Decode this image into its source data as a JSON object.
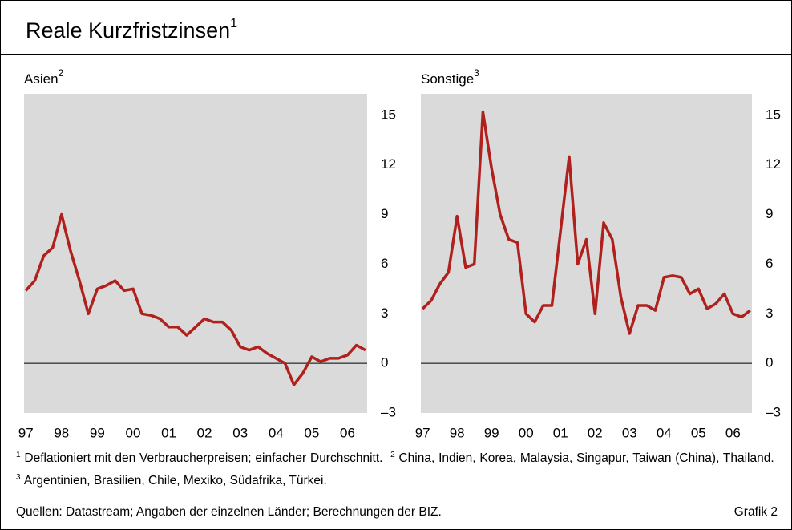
{
  "title": "Reale Kurzfristzinsen",
  "title_note": "1",
  "chart_data": [
    {
      "type": "line",
      "title": "Asien",
      "title_note": "2",
      "x": [
        1997,
        1997.25,
        1997.5,
        1997.75,
        1998,
        1998.25,
        1998.5,
        1998.75,
        1999,
        1999.25,
        1999.5,
        1999.75,
        2000,
        2000.25,
        2000.5,
        2000.75,
        2001,
        2001.25,
        2001.5,
        2001.75,
        2002,
        2002.25,
        2002.5,
        2002.75,
        2003,
        2003.25,
        2003.5,
        2003.75,
        2004,
        2004.25,
        2004.5,
        2004.75,
        2005,
        2005.25,
        2005.5,
        2005.75,
        2006,
        2006.25,
        2006.5
      ],
      "series": [
        {
          "color": "#b0201c",
          "values": [
            4.4,
            5.0,
            6.5,
            7.0,
            9.0,
            6.8,
            5.0,
            3.0,
            4.5,
            4.7,
            5.0,
            4.4,
            4.5,
            3.0,
            2.9,
            2.7,
            2.2,
            2.2,
            1.7,
            2.2,
            2.7,
            2.5,
            2.5,
            2.0,
            1.0,
            0.8,
            1.0,
            0.6,
            0.3,
            0.0,
            -1.3,
            -0.6,
            0.4,
            0.1,
            0.3,
            0.3,
            0.5,
            1.1,
            0.8
          ]
        }
      ],
      "xlim": [
        1996.95,
        2006.55
      ],
      "xticks": [
        {
          "value": 1997,
          "label": "97"
        },
        {
          "value": 1998,
          "label": "98"
        },
        {
          "value": 1999,
          "label": "99"
        },
        {
          "value": 2000,
          "label": "00"
        },
        {
          "value": 2001,
          "label": "01"
        },
        {
          "value": 2002,
          "label": "02"
        },
        {
          "value": 2003,
          "label": "03"
        },
        {
          "value": 2004,
          "label": "04"
        },
        {
          "value": 2005,
          "label": "05"
        },
        {
          "value": 2006,
          "label": "06"
        }
      ],
      "ylim": [
        -3,
        16.3
      ],
      "yticks": [
        {
          "value": -3,
          "label": "–3"
        },
        0,
        3,
        6,
        9,
        12,
        15
      ]
    },
    {
      "type": "line",
      "title": "Sonstige",
      "title_note": "3",
      "x": [
        1997,
        1997.25,
        1997.5,
        1997.75,
        1998,
        1998.25,
        1998.5,
        1998.75,
        1999,
        1999.25,
        1999.5,
        1999.75,
        2000,
        2000.25,
        2000.5,
        2000.75,
        2001,
        2001.25,
        2001.5,
        2001.75,
        2002,
        2002.25,
        2002.5,
        2002.75,
        2003,
        2003.25,
        2003.5,
        2003.75,
        2004,
        2004.25,
        2004.5,
        2004.75,
        2005,
        2005.25,
        2005.5,
        2005.75,
        2006,
        2006.25,
        2006.5
      ],
      "series": [
        {
          "color": "#b0201c",
          "values": [
            3.3,
            3.8,
            4.8,
            5.5,
            8.9,
            5.8,
            6.0,
            15.2,
            11.8,
            9.0,
            7.5,
            7.3,
            3.0,
            2.5,
            3.5,
            3.5,
            8.0,
            12.5,
            6.0,
            7.5,
            3.0,
            8.5,
            7.5,
            4.0,
            1.8,
            3.5,
            3.5,
            3.2,
            5.2,
            5.3,
            5.2,
            4.2,
            4.5,
            3.3,
            3.6,
            4.2,
            3.0,
            2.8,
            3.2
          ]
        }
      ],
      "xlim": [
        1996.95,
        2006.55
      ],
      "xticks": [
        {
          "value": 1997,
          "label": "97"
        },
        {
          "value": 1998,
          "label": "98"
        },
        {
          "value": 1999,
          "label": "99"
        },
        {
          "value": 2000,
          "label": "00"
        },
        {
          "value": 2001,
          "label": "01"
        },
        {
          "value": 2002,
          "label": "02"
        },
        {
          "value": 2003,
          "label": "03"
        },
        {
          "value": 2004,
          "label": "04"
        },
        {
          "value": 2005,
          "label": "05"
        },
        {
          "value": 2006,
          "label": "06"
        }
      ],
      "ylim": [
        -3,
        16.3
      ],
      "yticks": [
        {
          "value": -3,
          "label": "–3"
        },
        0,
        3,
        6,
        9,
        12,
        15
      ]
    }
  ],
  "footnotes": [
    {
      "mark": "1",
      "text": "Deflationiert mit den Verbraucherpreisen; einfacher Durchschnitt."
    },
    {
      "mark": "2",
      "text": "China, Indien, Korea, Malaysia, Singapur, Taiwan (China), Thailand."
    },
    {
      "mark": "3",
      "text": "Argentinien, Brasilien, Chile, Mexiko, Südafrika, Türkei."
    }
  ],
  "source": "Quellen: Datastream; Angaben der einzelnen Länder; Berechnungen der BIZ.",
  "figure_label": "Grafik 2"
}
